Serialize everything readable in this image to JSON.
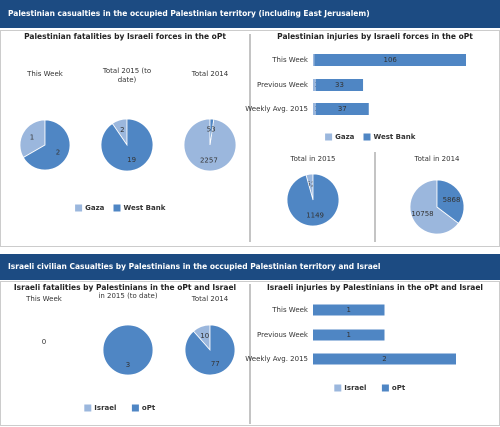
{
  "banners": [
    "Palestinian casualties in the occupied Palestinian territory (including East Jerusalem)",
    "Israeli civilian Casualties by Palestinians in the occupied Palestinian territory and Israel"
  ],
  "chart_data": [
    {
      "type": "pie",
      "title": "Palestinian fatalities by Israeli forces in the oPt",
      "series_names": [
        "Gaza",
        "West Bank"
      ],
      "colors": [
        "#9bb7dd",
        "#4f86c4"
      ],
      "pies": [
        {
          "label": "This Week",
          "values": [
            1,
            2
          ]
        },
        {
          "label": "Total 2015 (to date)",
          "values": [
            2,
            19
          ]
        },
        {
          "label": "Total 2014",
          "values": [
            2257,
            53
          ]
        }
      ]
    },
    {
      "type": "bar",
      "orientation": "horizontal",
      "stacked": true,
      "title": "Palestinian injuries by Israeli forces in the oPt",
      "categories": [
        "This Week",
        "Previous Week",
        "Weekly Avg. 2015"
      ],
      "series": [
        {
          "name": "Gaza",
          "color": "#9bb7dd",
          "values": [
            1,
            2,
            2
          ]
        },
        {
          "name": "West Bank",
          "color": "#4f86c4",
          "values": [
            106,
            33,
            37
          ]
        }
      ]
    },
    {
      "type": "pie",
      "colors": [
        "#9bb7dd",
        "#4f86c4"
      ],
      "pies": [
        {
          "label": "Total in 2015",
          "values": [
            52,
            1149
          ]
        },
        {
          "label": "Total in 2014",
          "values": [
            10758,
            5868
          ]
        }
      ]
    },
    {
      "type": "pie",
      "title": "Israeli fatalities by Palestinians in the oPt and Israel",
      "series_names": [
        "Israel",
        "oPt"
      ],
      "colors": [
        "#9bb7dd",
        "#4f86c4"
      ],
      "pies": [
        {
          "label": "This Week",
          "values": [
            0,
            0
          ]
        },
        {
          "label": "in 2015 (to date)",
          "values": [
            0,
            3
          ]
        },
        {
          "label": "Total 2014",
          "values": [
            10,
            77
          ]
        }
      ]
    },
    {
      "type": "bar",
      "orientation": "horizontal",
      "stacked": true,
      "title": "Israeli injuries by Palestinians in the oPt and Israel",
      "categories": [
        "This Week",
        "Previous Week",
        "Weekly Avg. 2015"
      ],
      "series": [
        {
          "name": "Israel",
          "color": "#9bb7dd",
          "values": [
            0,
            0,
            0
          ]
        },
        {
          "name": "oPt",
          "color": "#4f86c4",
          "values": [
            1,
            1,
            2
          ]
        }
      ]
    }
  ]
}
